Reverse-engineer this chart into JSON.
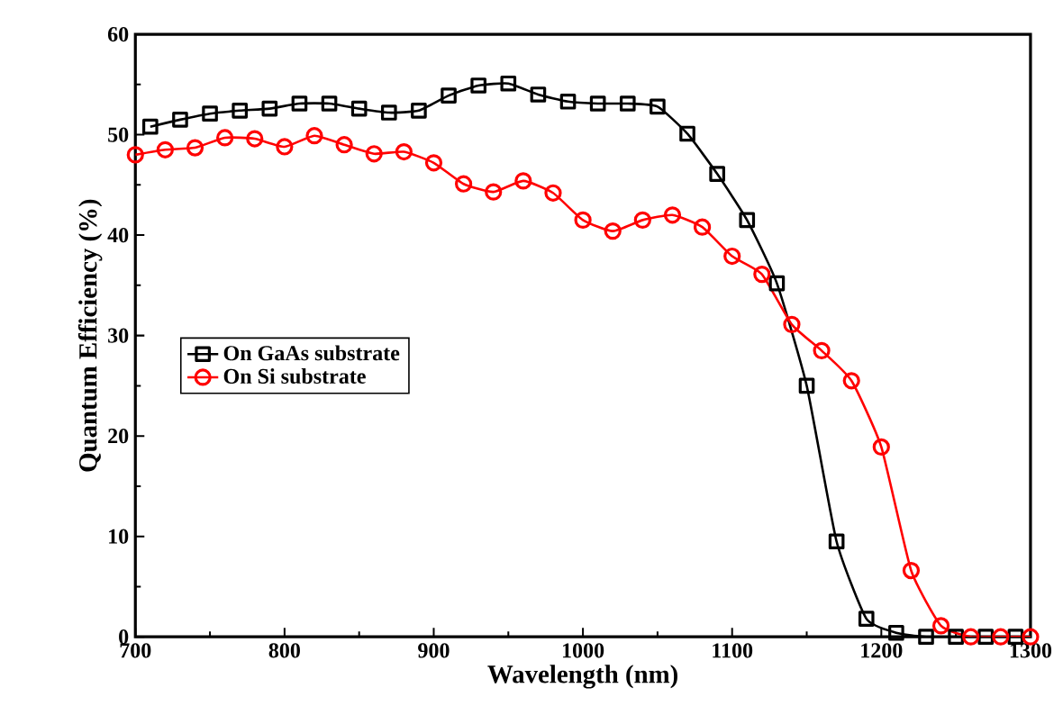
{
  "chart_data": {
    "type": "line",
    "xlabel": "Wavelength (nm)",
    "ylabel": "Quantum Efficiency (%)",
    "xlim": [
      700,
      1300
    ],
    "ylim": [
      0,
      60
    ],
    "xticks": [
      700,
      800,
      900,
      1000,
      1100,
      1200,
      1300
    ],
    "yticks": [
      0,
      10,
      20,
      30,
      40,
      50,
      60
    ],
    "grid": false,
    "legend": "left",
    "series": [
      {
        "name": "On GaAs substrate",
        "color": "#000000",
        "marker": "square",
        "x": [
          710,
          730,
          750,
          770,
          790,
          810,
          830,
          850,
          870,
          890,
          910,
          930,
          950,
          970,
          990,
          1010,
          1030,
          1050,
          1070,
          1090,
          1110,
          1130,
          1150,
          1170,
          1190,
          1210,
          1230,
          1250,
          1270,
          1290
        ],
        "values": [
          50.8,
          51.5,
          52.1,
          52.4,
          52.6,
          53.1,
          53.1,
          52.6,
          52.2,
          52.4,
          53.9,
          54.9,
          55.1,
          54,
          53.3,
          53.1,
          53.1,
          52.8,
          50.1,
          46.1,
          41.5,
          35.2,
          25,
          9.5,
          1.8,
          0.4,
          0,
          0,
          0,
          0
        ]
      },
      {
        "name": "On Si substrate",
        "color": "#ff0000",
        "marker": "circle",
        "x": [
          700,
          720,
          740,
          760,
          780,
          800,
          820,
          840,
          860,
          880,
          900,
          920,
          940,
          960,
          980,
          1000,
          1020,
          1040,
          1060,
          1080,
          1100,
          1120,
          1140,
          1160,
          1180,
          1200,
          1220,
          1240,
          1260,
          1280,
          1300
        ],
        "values": [
          48,
          48.5,
          48.7,
          49.7,
          49.6,
          48.8,
          49.9,
          49,
          48.1,
          48.3,
          47.2,
          45.1,
          44.3,
          45.4,
          44.2,
          41.5,
          40.4,
          41.5,
          42,
          40.8,
          37.9,
          36.1,
          31.1,
          28.5,
          25.5,
          18.9,
          6.6,
          1.1,
          0,
          0,
          0
        ]
      }
    ]
  }
}
